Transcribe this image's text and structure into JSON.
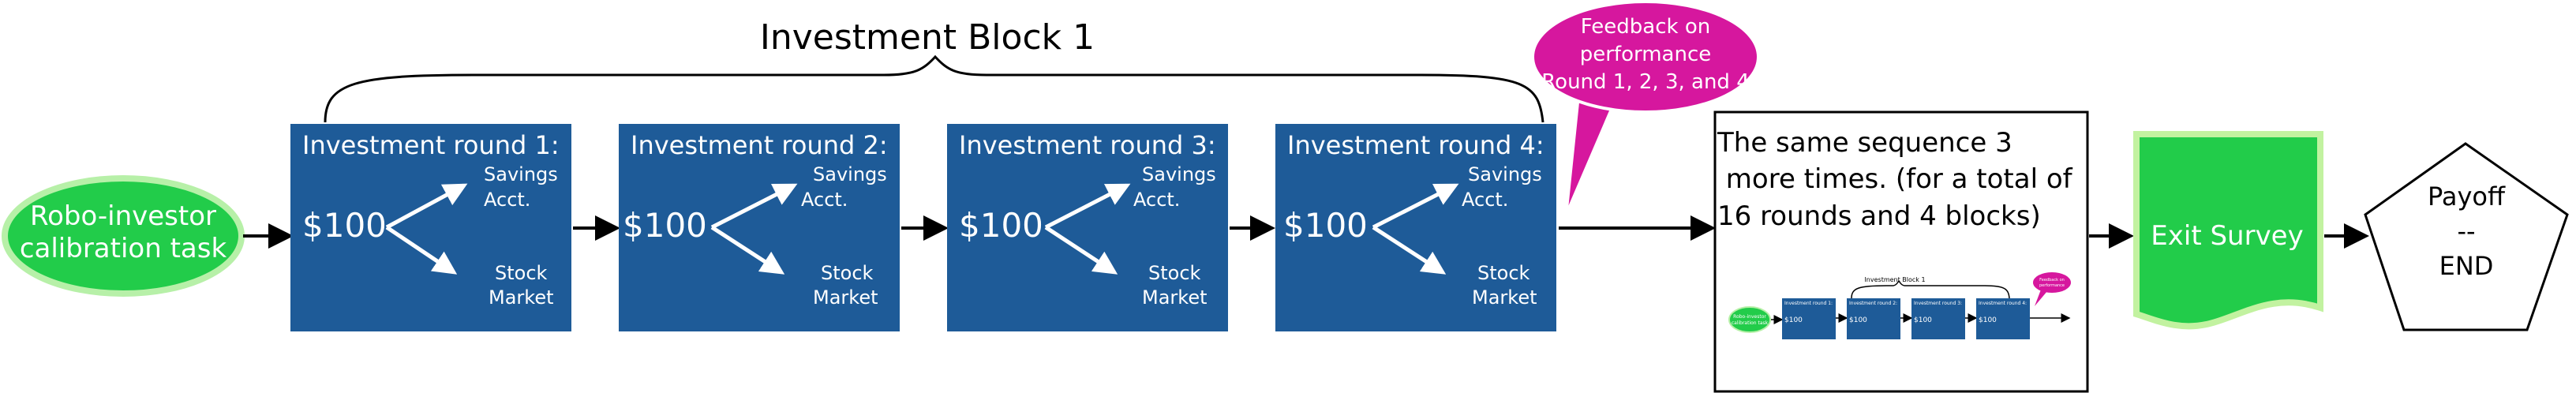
{
  "block_title": "Investment Block 1",
  "start_node": {
    "line1": "Robo-investor",
    "line2": "calibration  task"
  },
  "rounds": [
    {
      "title": "Investment round 1:",
      "amount": "$100",
      "savings_l1": "Savings",
      "savings_l2": "Acct.",
      "stock_l1": "Stock",
      "stock_l2": "Market"
    },
    {
      "title": "Investment round 2:",
      "amount": "$100",
      "savings_l1": "Savings",
      "savings_l2": "Acct.",
      "stock_l1": "Stock",
      "stock_l2": "Market"
    },
    {
      "title": "Investment round 3:",
      "amount": "$100",
      "savings_l1": "Savings",
      "savings_l2": "Acct.",
      "stock_l1": "Stock",
      "stock_l2": "Market"
    },
    {
      "title": "Investment round 4:",
      "amount": "$100",
      "savings_l1": "Savings",
      "savings_l2": "Acct.",
      "stock_l1": "Stock",
      "stock_l2": "Market"
    }
  ],
  "feedback_bubble": {
    "line1": "Feedback on",
    "line2": "performance",
    "line3": "Round 1, 2, 3, and 4"
  },
  "repeat_box": {
    "line1": "The same sequence 3",
    "line2": " more times. (for a total of",
    "line3": "16 rounds and 4 blocks)"
  },
  "thumbnail": {
    "block_title": "Investment Block 1",
    "start_l1": "Robo-investor",
    "start_l2": "calibration task",
    "round_titles": [
      "Investment round 1:",
      "Investment round 2:",
      "Investment round 3:",
      "Investment round 4:"
    ],
    "amount": "$100",
    "savings": "Savings Acct.",
    "stock": "Stock Market",
    "feedback_l1": "Feedback on",
    "feedback_l2": "performance"
  },
  "exit_survey": "Exit Survey",
  "end_node": {
    "line1": "Payoff",
    "line2": "--",
    "line3": "END"
  },
  "colors": {
    "round_box": "#1e5b98",
    "start_fill": "#22cc4a",
    "start_stroke": "#b7f0a8",
    "bubble": "#d6179e",
    "exit_fill": "#22cc4a",
    "exit_stroke": "#c2f2a0"
  }
}
